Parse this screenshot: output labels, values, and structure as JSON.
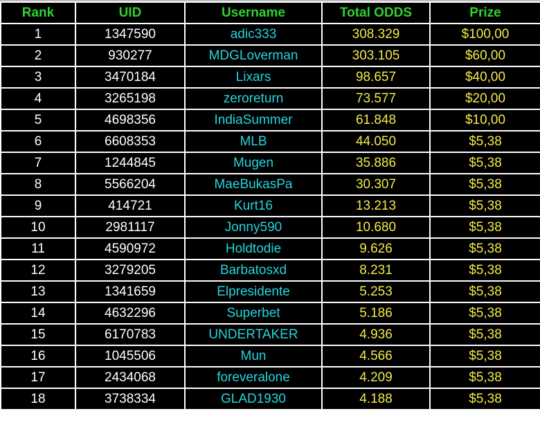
{
  "headers": [
    "Rank",
    "UID",
    "Username",
    "Total ODDS",
    "Prize"
  ],
  "colors": {
    "header": "#2fd22f",
    "rank_uid": "#ffffff",
    "username": "#26d4dc",
    "values": "#f2ea4a",
    "background": "#000000",
    "grid": "#ffffff"
  },
  "rows": [
    {
      "rank": "1",
      "uid": "1347590",
      "username": "adic333",
      "odds": "308.329",
      "prize": "$100,00"
    },
    {
      "rank": "2",
      "uid": "930277",
      "username": "MDGLoverman",
      "odds": "303.105",
      "prize": "$60,00"
    },
    {
      "rank": "3",
      "uid": "3470184",
      "username": "Lixars",
      "odds": "98.657",
      "prize": "$40,00"
    },
    {
      "rank": "4",
      "uid": "3265198",
      "username": "zeroreturn",
      "odds": "73.577",
      "prize": "$20,00"
    },
    {
      "rank": "5",
      "uid": "4698356",
      "username": "IndiaSummer",
      "odds": "61.848",
      "prize": "$10,00"
    },
    {
      "rank": "6",
      "uid": "6608353",
      "username": "MLB",
      "odds": "44.050",
      "prize": "$5,38"
    },
    {
      "rank": "7",
      "uid": "1244845",
      "username": "Mugen",
      "odds": "35.886",
      "prize": "$5,38"
    },
    {
      "rank": "8",
      "uid": "5566204",
      "username": "MaeBukasPa",
      "odds": "30.307",
      "prize": "$5,38"
    },
    {
      "rank": "9",
      "uid": "414721",
      "username": "Kurt16",
      "odds": "13.213",
      "prize": "$5,38"
    },
    {
      "rank": "10",
      "uid": "2981117",
      "username": "Jonny590",
      "odds": "10.680",
      "prize": "$5,38"
    },
    {
      "rank": "11",
      "uid": "4590972",
      "username": "Holdtodie",
      "odds": "9.626",
      "prize": "$5,38"
    },
    {
      "rank": "12",
      "uid": "3279205",
      "username": "Barbatosxd",
      "odds": "8.231",
      "prize": "$5,38"
    },
    {
      "rank": "13",
      "uid": "1341659",
      "username": "Elpresidente",
      "odds": "5.253",
      "prize": "$5,38"
    },
    {
      "rank": "14",
      "uid": "4632296",
      "username": "Superbet",
      "odds": "5.186",
      "prize": "$5,38"
    },
    {
      "rank": "15",
      "uid": "6170783",
      "username": "UNDERTAKER",
      "odds": "4.936",
      "prize": "$5,38"
    },
    {
      "rank": "16",
      "uid": "1045506",
      "username": "Mun",
      "odds": "4.566",
      "prize": "$5,38"
    },
    {
      "rank": "17",
      "uid": "2434068",
      "username": "foreveralone",
      "odds": "4.209",
      "prize": "$5,38"
    },
    {
      "rank": "18",
      "uid": "3738334",
      "username": "GLAD1930",
      "odds": "4.188",
      "prize": "$5,38"
    }
  ]
}
